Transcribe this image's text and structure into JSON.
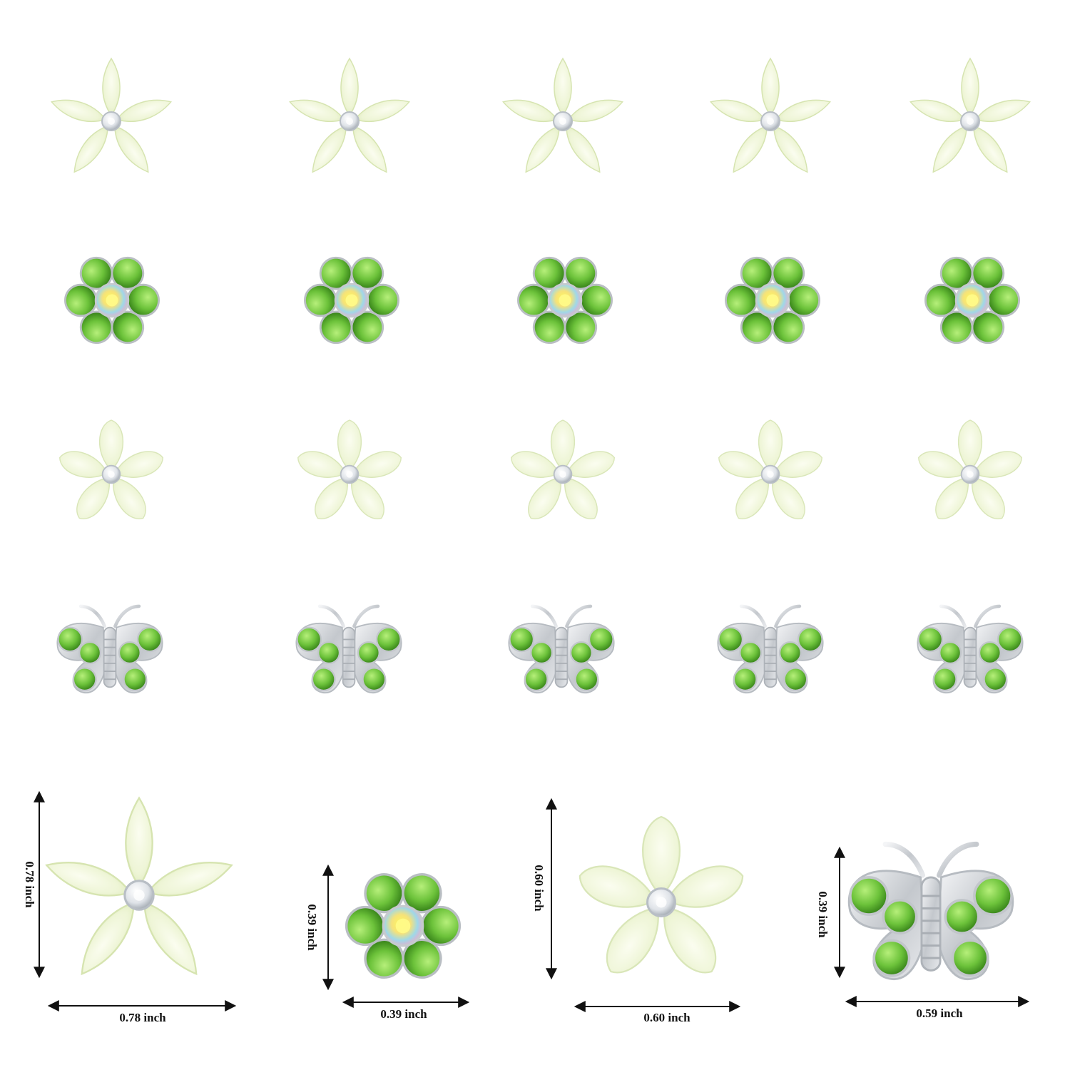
{
  "colors": {
    "background": "#ffffff",
    "petal_pale": "#eef5d6",
    "petal_edge": "#d9e8b4",
    "rhinestone_green": "#6cc23a",
    "rhinestone_dark": "#3f8f1c",
    "silver": "#c9ccd0",
    "crystal": "#e8ecf0",
    "arrow": "#111111"
  },
  "grid": {
    "rows": [
      {
        "item": "pointed-flower",
        "count": 5
      },
      {
        "item": "rhinestone-flower",
        "count": 5
      },
      {
        "item": "round-flower",
        "count": 5
      },
      {
        "item": "butterfly",
        "count": 5
      }
    ]
  },
  "dimensions": {
    "pointed_flower": {
      "width": "0.78 inch",
      "height": "0.78 inch"
    },
    "rhinestone_flower": {
      "width": "0.39 inch",
      "height": "0.39 inch"
    },
    "round_flower": {
      "width": "0.60 inch",
      "height": "0.60 inch"
    },
    "butterfly": {
      "width": "0.59 inch",
      "height": "0.39 inch"
    }
  }
}
